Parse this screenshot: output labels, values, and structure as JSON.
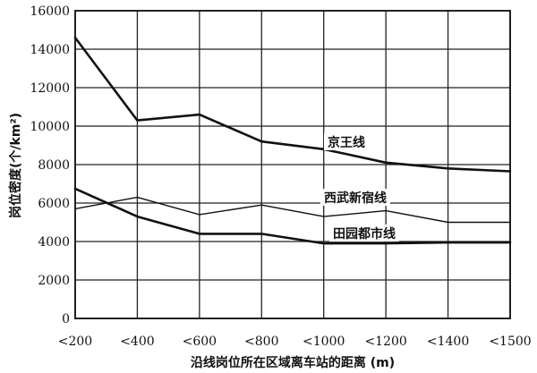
{
  "chart_data": {
    "type": "line",
    "title": "",
    "xlabel": "沿线岗位所在区域离车站的距离 (m)",
    "ylabel": "岗位密度(个/km²)",
    "categories": [
      "<200",
      "<400",
      "<600",
      "<800",
      "<1000",
      "<1200",
      "<1400",
      "<1500"
    ],
    "ylim": [
      0,
      16000
    ],
    "yticks": [
      0,
      2000,
      4000,
      6000,
      8000,
      10000,
      12000,
      14000,
      16000
    ],
    "grid": true,
    "series": [
      {
        "name": "京王线",
        "values": [
          14600,
          10300,
          10600,
          9200,
          8800,
          8100,
          7800,
          7650
        ]
      },
      {
        "name": "西武新宿线",
        "values": [
          5700,
          6300,
          5400,
          5900,
          5300,
          5600,
          5000,
          5000
        ]
      },
      {
        "name": "田园都市线",
        "values": [
          6750,
          5300,
          4400,
          4400,
          3900,
          3900,
          3950,
          3950
        ]
      }
    ]
  }
}
